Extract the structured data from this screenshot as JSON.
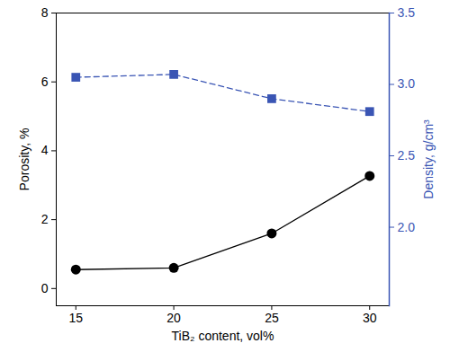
{
  "chart_data": {
    "type": "line",
    "x_label": "TiB₂ content, vol%",
    "y_label": "Porosity, %",
    "y2_label": "Density, g/cm³",
    "x": [
      15,
      20,
      25,
      30
    ],
    "series": [
      {
        "color": "#000000",
        "marker": "circle",
        "line_style": "solid",
        "values": [
          0.55,
          0.6,
          1.6,
          3.27
        ]
      },
      {
        "color": "#3a55b4",
        "marker": "square",
        "line_style": "dashed",
        "axis": "y2",
        "values": [
          3.05,
          3.07,
          2.9,
          2.81
        ]
      }
    ],
    "xlim": [
      14,
      31
    ],
    "xticks": [
      15,
      20,
      25,
      30
    ],
    "ylim": [
      -0.5,
      8
    ],
    "yticks": [
      0,
      2,
      4,
      6,
      8
    ],
    "y2lim": [
      1.45,
      3.5
    ],
    "y2ticks": [
      {
        "value": 2,
        "label": "2.0"
      },
      {
        "value": 2.5,
        "label": "2.5"
      },
      {
        "value": 3,
        "label": "3.0"
      },
      {
        "value": 3.5,
        "label": "3.5"
      }
    ],
    "grid": false
  }
}
